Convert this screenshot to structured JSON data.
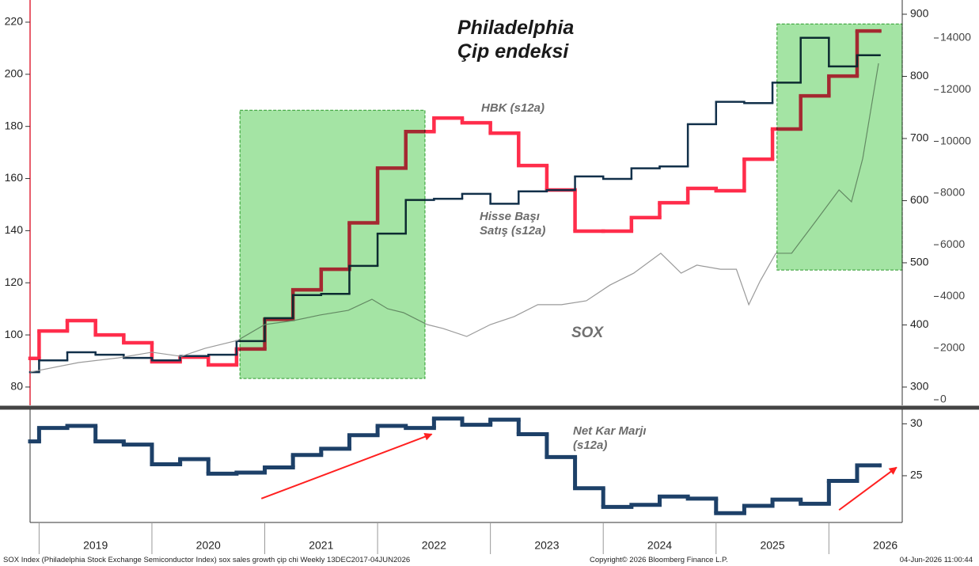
{
  "chart_data": [
    {
      "type": "step",
      "title": "Philadelphia Çip endeksi",
      "xlim": [
        2018.92,
        2026.65
      ],
      "ylim": [
        73.6,
        228.5
      ],
      "yticks": [
        80,
        100,
        120,
        140,
        160,
        180,
        200,
        220
      ],
      "y2lim": [
        273.2,
        922.9
      ],
      "y2ticks": [
        300,
        400,
        500,
        600,
        700,
        800,
        900
      ],
      "y3lim": [
        -153,
        15470
      ],
      "y3ticks": [
        0,
        2000,
        4000,
        6000,
        8000,
        10000,
        12000,
        14000
      ],
      "x": [
        2018.92,
        2019.0,
        2019.25,
        2019.5,
        2019.75,
        2020.0,
        2020.25,
        2020.5,
        2020.75,
        2021.0,
        2021.25,
        2021.5,
        2021.75,
        2022.0,
        2022.25,
        2022.5,
        2022.75,
        2023.0,
        2023.25,
        2023.5,
        2023.75,
        2024.0,
        2024.25,
        2024.5,
        2024.75,
        2025.0,
        2025.25,
        2025.5,
        2025.75,
        2026.0,
        2026.25,
        2026.45
      ],
      "series": [
        {
          "name": "HBK (s12a)",
          "color": "#ff2d4b",
          "axis": "y",
          "width": 4.5,
          "values": [
            91,
            101.5,
            105.5,
            100,
            97,
            89.7,
            91.5,
            88.5,
            94.6,
            106,
            117.3,
            125.2,
            143,
            164,
            178,
            183.2,
            181.4,
            177.4,
            165,
            155.6,
            139.8,
            139.8,
            145,
            150.7,
            156.2,
            155.3,
            167.4,
            179,
            191.7,
            199.3,
            216.6,
            216.6
          ]
        },
        {
          "name": "Hisse Başı Satış (s12a)",
          "color": "#12304a",
          "axis": "y2",
          "width": 2.5,
          "values": [
            324,
            343,
            356,
            352,
            347,
            343,
            350,
            352,
            374,
            411,
            448,
            450,
            495,
            547,
            601,
            603,
            611,
            595,
            615,
            617,
            639,
            635,
            652,
            655,
            723,
            759,
            757,
            790,
            862,
            816,
            834,
            834
          ]
        },
        {
          "name": "SOX",
          "color": "#9a9a9a",
          "axis": "y3",
          "kind": "line",
          "x": [
            2018.92,
            2019.35,
            2019.7,
            2020.0,
            2020.26,
            2020.47,
            2020.76,
            2021.0,
            2021.25,
            2021.49,
            2021.74,
            2021.95,
            2022.09,
            2022.23,
            2022.44,
            2022.58,
            2022.79,
            2023.0,
            2023.21,
            2023.42,
            2023.63,
            2023.85,
            2024.06,
            2024.27,
            2024.51,
            2024.69,
            2024.83,
            2025.04,
            2025.18,
            2025.29,
            2025.39,
            2025.53,
            2025.67,
            2025.88,
            2026.09,
            2026.2,
            2026.3,
            2026.37,
            2026.44
          ],
          "values": [
            1070,
            1440,
            1620,
            1840,
            1680,
            1990,
            2300,
            2910,
            3060,
            3280,
            3460,
            3890,
            3520,
            3370,
            2910,
            2760,
            2450,
            2910,
            3220,
            3680,
            3680,
            3830,
            4440,
            4900,
            5670,
            4900,
            5210,
            5050,
            5050,
            3680,
            4590,
            5670,
            5670,
            6890,
            8120,
            7660,
            9340,
            11180,
            13020
          ]
        }
      ],
      "highlights": [
        {
          "color": "#7ed87e",
          "x": [
            2020.78,
            2022.42
          ],
          "y": [
            83.3,
            186.2
          ]
        },
        {
          "color": "#7ed87e",
          "x": [
            2025.54,
            2026.65
          ],
          "y": [
            124.9,
            219.3
          ]
        }
      ]
    },
    {
      "type": "step",
      "xlim": [
        2018.92,
        2026.65
      ],
      "ylim": [
        20.5,
        31.4
      ],
      "yticks": [
        25,
        30
      ],
      "xticks": [
        2019,
        2020,
        2021,
        2022,
        2023,
        2024,
        2025,
        2026
      ],
      "x": [
        2018.92,
        2019.0,
        2019.25,
        2019.5,
        2019.75,
        2020.0,
        2020.25,
        2020.5,
        2020.75,
        2021.0,
        2021.25,
        2021.5,
        2021.75,
        2022.0,
        2022.25,
        2022.5,
        2022.75,
        2023.0,
        2023.25,
        2023.5,
        2023.75,
        2024.0,
        2024.25,
        2024.5,
        2024.75,
        2025.0,
        2025.25,
        2025.5,
        2025.75,
        2026.0,
        2026.25,
        2026.45
      ],
      "series": [
        {
          "name": "Net Kar Marjı (s12a)",
          "color": "#1d4068",
          "width": 5,
          "values": [
            28.3,
            29.6,
            29.8,
            28.3,
            28.0,
            26.1,
            26.6,
            25.2,
            25.3,
            25.8,
            27.0,
            27.6,
            28.9,
            29.8,
            29.6,
            30.5,
            29.9,
            30.4,
            29.0,
            26.8,
            23.8,
            22.0,
            22.2,
            23.0,
            22.8,
            21.4,
            22.1,
            22.7,
            22.3,
            24.5,
            26.0,
            26.0
          ]
        }
      ],
      "arrows": [
        {
          "color": "#ff2020",
          "x": [
            2020.97,
            2022.48
          ],
          "y": [
            22.8,
            29.0
          ]
        },
        {
          "color": "#ff2020",
          "x": [
            2026.09,
            2026.6
          ],
          "y": [
            21.7,
            25.8
          ]
        }
      ]
    }
  ],
  "footer": {
    "left": "SOX Index (Philadelphia Stock Exchange Semiconductor Index) sox sales growth çip chi Weekly 13DEC2017-04JUN2026",
    "center": "Copyright© 2026 Bloomberg Finance L.P.",
    "right": "04-Jun-2026 11:00:44"
  }
}
